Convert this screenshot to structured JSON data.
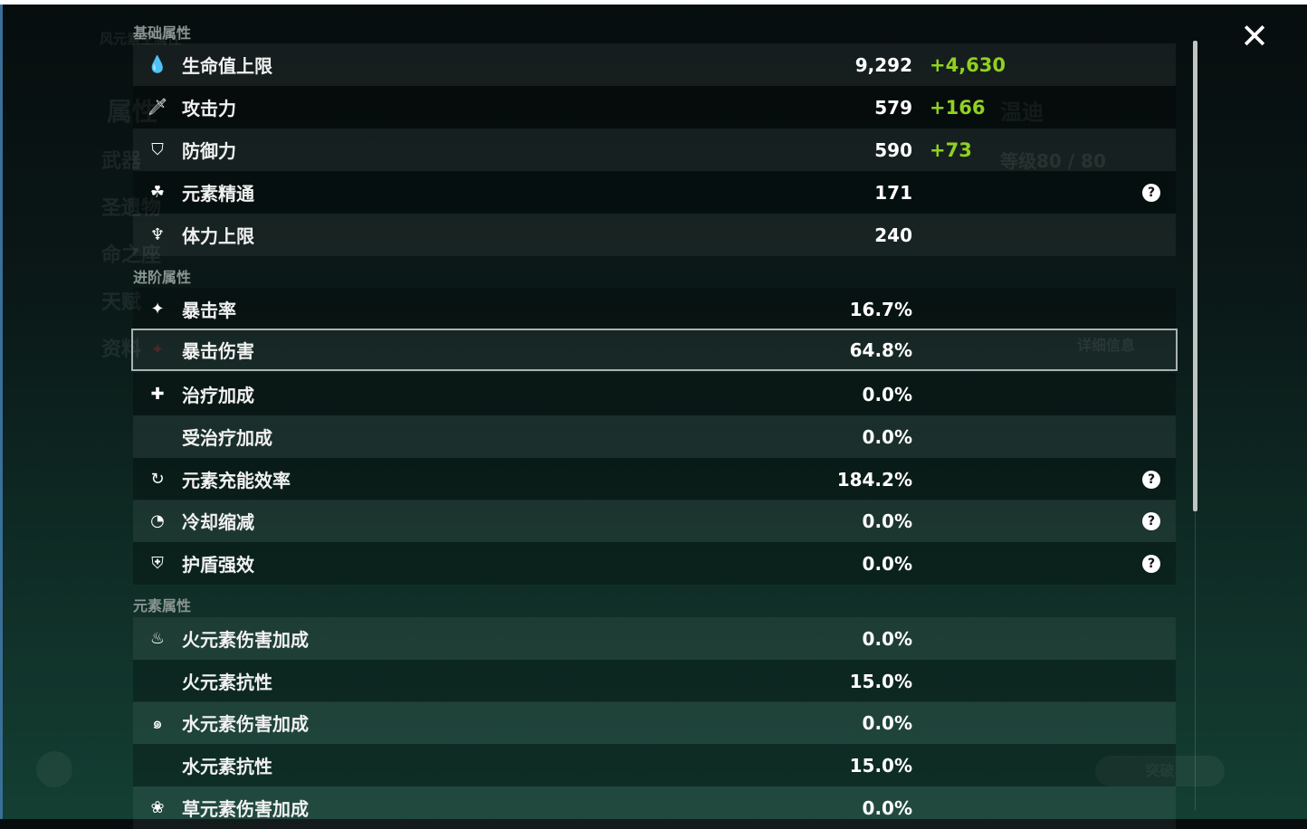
{
  "background": {
    "char_name": "温迪",
    "level": "等级80 / 80",
    "detail_button": "详细信息",
    "breakthrough_button": "突破",
    "tab_attr": "属性",
    "menu": [
      "武器",
      "圣遗物",
      "命之座",
      "天赋",
      "资料"
    ],
    "element_title": "风元素主属性"
  },
  "sections": {
    "basic": "基础属性",
    "advanced": "进阶属性",
    "elemental": "元素属性"
  },
  "basic": [
    {
      "icon": "hp-drop-icon",
      "label": "生命值上限",
      "value": "9,292",
      "bonus": "+4,630"
    },
    {
      "icon": "sword-icon",
      "label": "攻击力",
      "value": "579",
      "bonus": "+166"
    },
    {
      "icon": "shield-icon",
      "label": "防御力",
      "value": "590",
      "bonus": "+73"
    },
    {
      "icon": "elemental-mastery-icon",
      "label": "元素精通",
      "value": "171",
      "help": "?"
    },
    {
      "icon": "stamina-icon",
      "label": "体力上限",
      "value": "240"
    }
  ],
  "advanced": [
    {
      "icon": "crit-rate-icon",
      "label": "暴击率",
      "value": "16.7%"
    },
    {
      "icon": "crit-dmg-icon",
      "label": "暴击伤害",
      "value": "64.8%"
    },
    {
      "icon": "healing-cross-icon",
      "label": "治疗加成",
      "value": "0.0%"
    },
    {
      "label": "受治疗加成",
      "value": "0.0%"
    },
    {
      "icon": "energy-recharge-icon",
      "label": "元素充能效率",
      "value": "184.2%",
      "help": "?"
    },
    {
      "icon": "cooldown-icon",
      "label": "冷却缩减",
      "value": "0.0%",
      "help": "?"
    },
    {
      "icon": "shield-strength-icon",
      "label": "护盾强效",
      "value": "0.0%",
      "help": "?"
    }
  ],
  "elemental": [
    {
      "icon": "pyro-icon",
      "label": "火元素伤害加成",
      "value": "0.0%"
    },
    {
      "label": "火元素抗性",
      "value": "15.0%"
    },
    {
      "icon": "hydro-icon",
      "label": "水元素伤害加成",
      "value": "0.0%"
    },
    {
      "label": "水元素抗性",
      "value": "15.0%"
    },
    {
      "icon": "dendro-icon",
      "label": "草元素伤害加成",
      "value": "0.0%"
    }
  ],
  "close": "✕",
  "colors": {
    "bonus": "#8fd21f",
    "selected_border": "#a9b3b0"
  }
}
